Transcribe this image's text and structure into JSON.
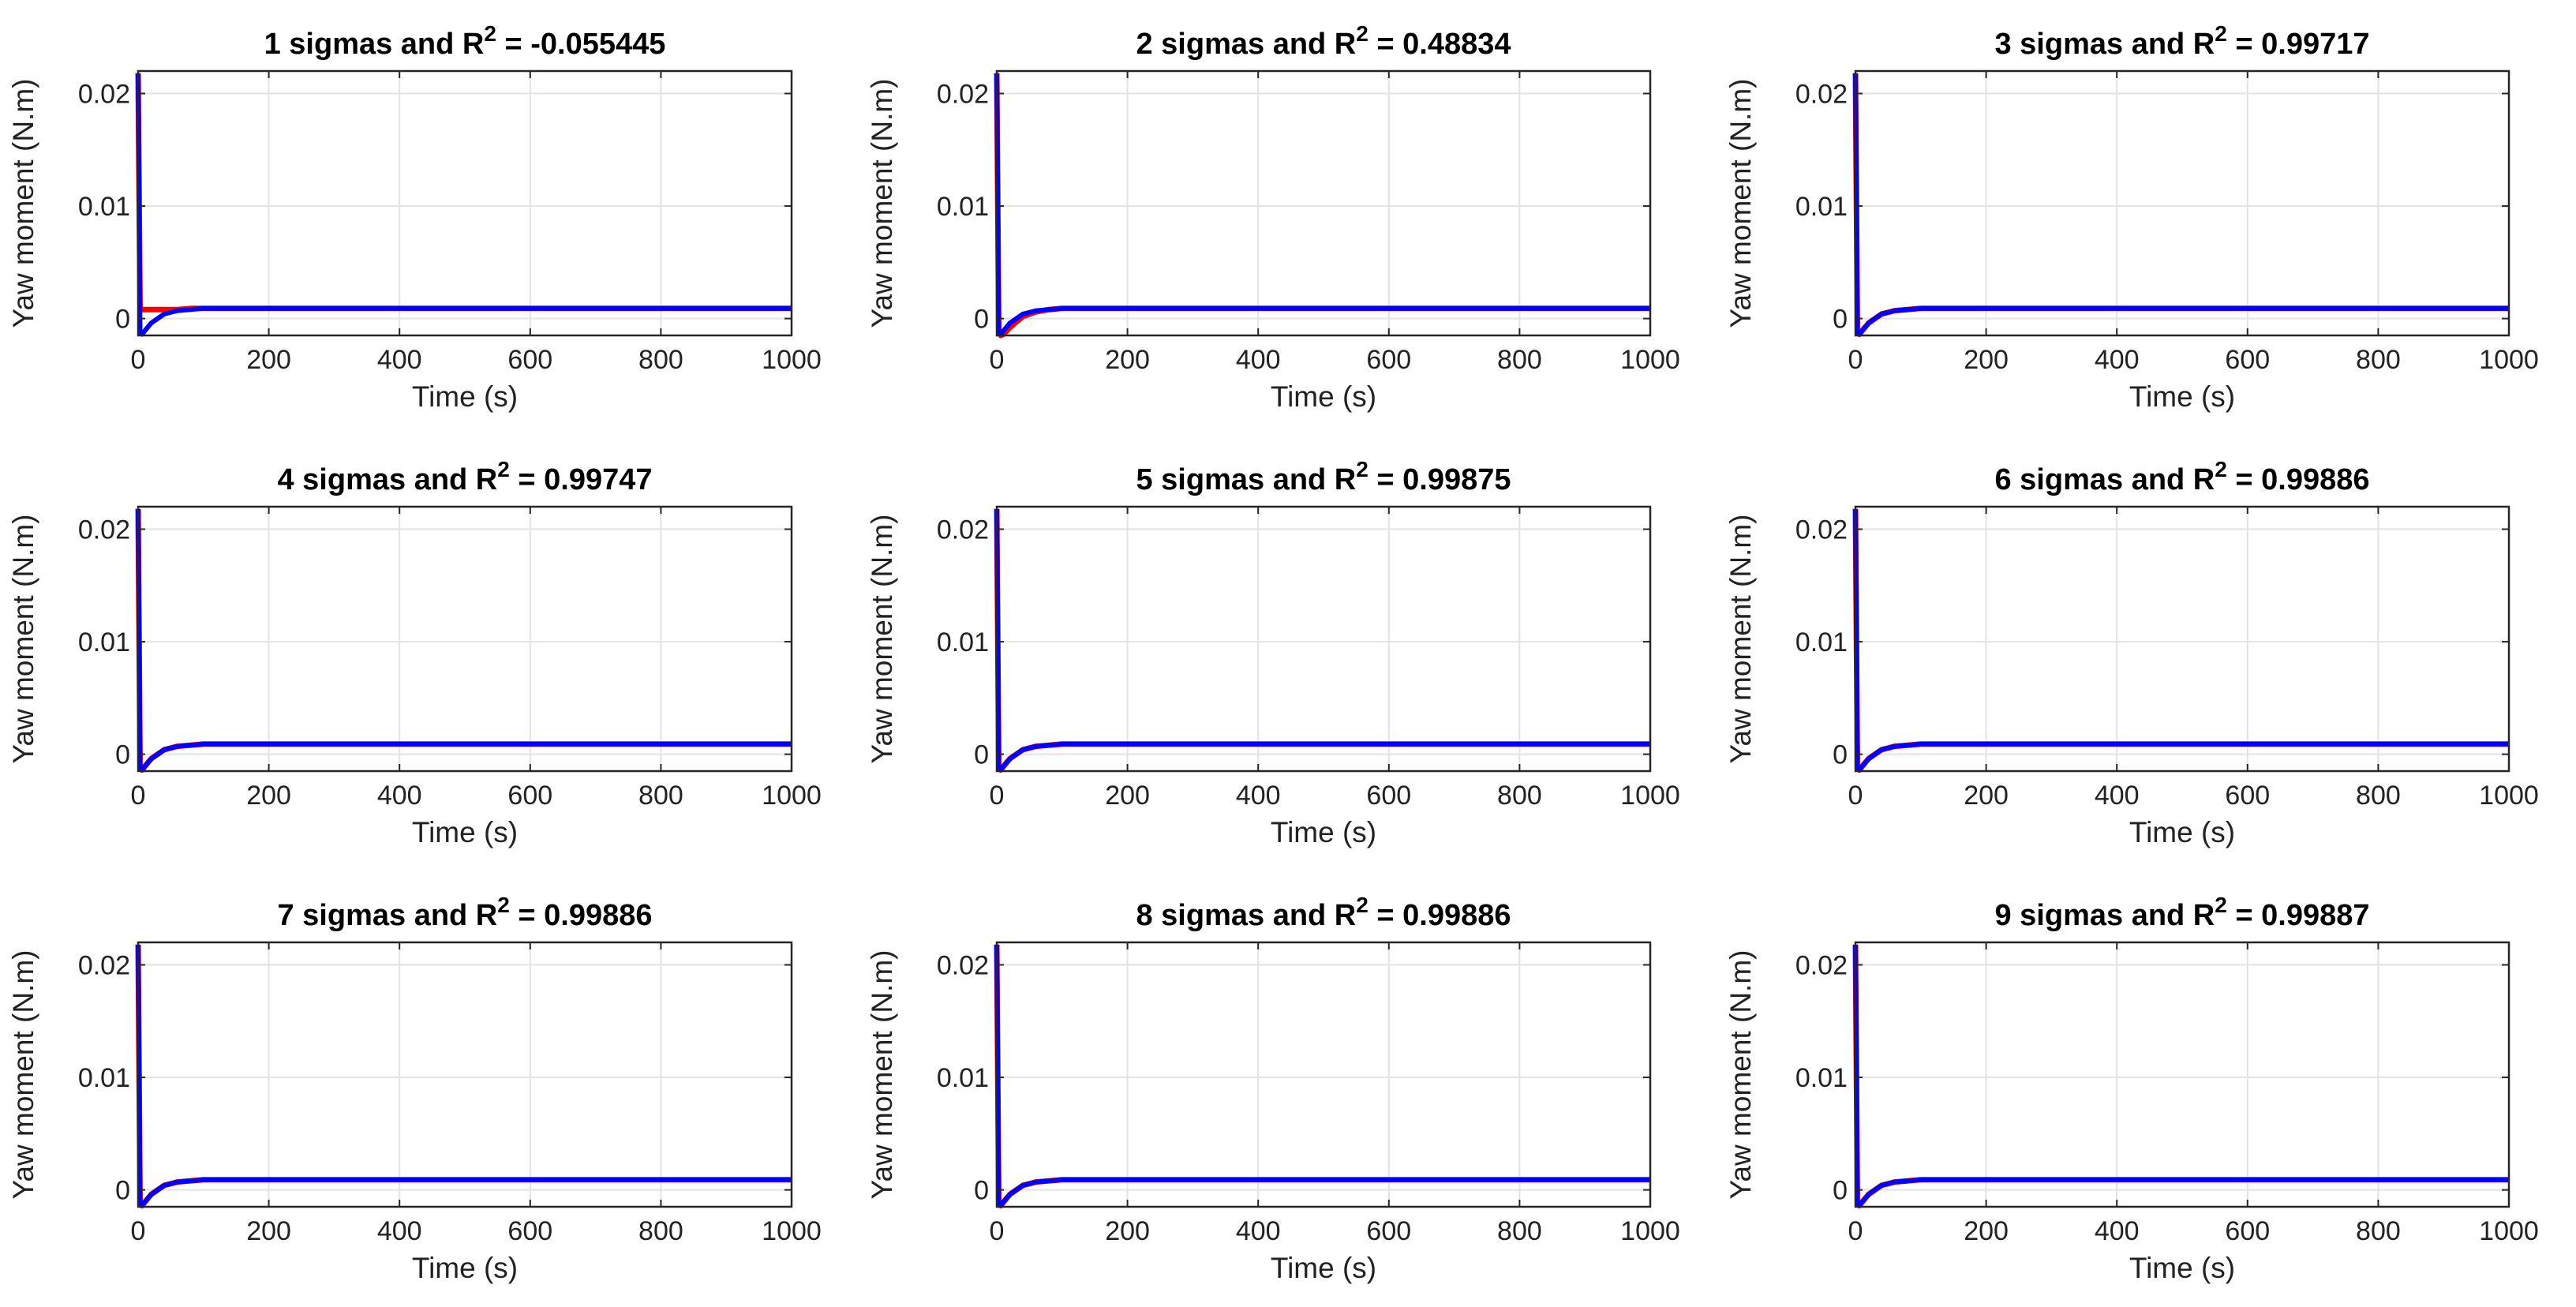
{
  "chart_data": [
    {
      "type": "line",
      "title": "1 sigmas and R",
      "title_sup": "2",
      "title_value": " = -0.055445",
      "xlabel": "Time (s)",
      "ylabel": "Yaw moment (N.m)",
      "xlim": [
        0,
        1000
      ],
      "ylim": [
        -0.0015,
        0.022
      ],
      "xticks": [
        "0",
        "200",
        "400",
        "600",
        "800",
        "1000"
      ],
      "yticks": [
        "0",
        "0.01",
        "0.02"
      ],
      "grid": true,
      "series": [
        {
          "color": "#ff0000",
          "x": [
            0,
            3,
            6,
            10,
            20,
            40,
            60,
            80,
            100,
            200,
            400,
            600,
            800,
            1000
          ],
          "y": [
            0.0218,
            0.0008,
            0.0008,
            0.0008,
            0.0008,
            0.0008,
            0.0008,
            0.0009,
            0.0009,
            0.0009,
            0.0009,
            0.0009,
            0.0009,
            0.0009
          ]
        },
        {
          "color": "#0000ff",
          "x": [
            0,
            3,
            6,
            10,
            20,
            30,
            40,
            60,
            80,
            100,
            200,
            400,
            600,
            800,
            1000
          ],
          "y": [
            0.0218,
            -0.0012,
            -0.0014,
            -0.0011,
            -0.0004,
            0.0,
            0.0004,
            0.0007,
            0.0008,
            0.0009,
            0.0009,
            0.0009,
            0.0009,
            0.0009,
            0.0009
          ]
        }
      ]
    },
    {
      "type": "line",
      "title": "2 sigmas and R",
      "title_sup": "2",
      "title_value": " = 0.48834",
      "xlabel": "Time (s)",
      "ylabel": "Yaw moment (N.m)",
      "xlim": [
        0,
        1000
      ],
      "ylim": [
        -0.0015,
        0.022
      ],
      "xticks": [
        "0",
        "200",
        "400",
        "600",
        "800",
        "1000"
      ],
      "yticks": [
        "0",
        "0.01",
        "0.02"
      ],
      "grid": true,
      "series": [
        {
          "color": "#ff0000",
          "x": [
            0,
            3,
            6,
            10,
            20,
            30,
            40,
            60,
            80,
            100,
            200,
            400,
            600,
            800,
            1000
          ],
          "y": [
            0.0218,
            -0.0012,
            -0.0015,
            -0.0014,
            -0.0008,
            -0.0003,
            0.0002,
            0.0006,
            0.0008,
            0.0009,
            0.0009,
            0.0009,
            0.0009,
            0.0009,
            0.0009
          ]
        },
        {
          "color": "#0000ff",
          "x": [
            0,
            3,
            6,
            10,
            20,
            30,
            40,
            60,
            80,
            100,
            200,
            400,
            600,
            800,
            1000
          ],
          "y": [
            0.0218,
            -0.0012,
            -0.0014,
            -0.0011,
            -0.0004,
            0.0,
            0.0004,
            0.0007,
            0.0008,
            0.0009,
            0.0009,
            0.0009,
            0.0009,
            0.0009,
            0.0009
          ]
        }
      ]
    },
    {
      "type": "line",
      "title": "3 sigmas and R",
      "title_sup": "2",
      "title_value": " = 0.99717",
      "xlabel": "Time (s)",
      "ylabel": "Yaw moment (N.m)",
      "xlim": [
        0,
        1000
      ],
      "ylim": [
        -0.0015,
        0.022
      ],
      "xticks": [
        "0",
        "200",
        "400",
        "600",
        "800",
        "1000"
      ],
      "yticks": [
        "0",
        "0.01",
        "0.02"
      ],
      "grid": true,
      "series": [
        {
          "color": "#ff0000",
          "x": [
            0,
            3,
            6,
            10,
            20,
            30,
            40,
            60,
            80,
            100,
            200,
            400,
            600,
            800,
            1000
          ],
          "y": [
            0.0218,
            -0.0012,
            -0.0014,
            -0.0011,
            -0.0004,
            0.0,
            0.0004,
            0.0007,
            0.0008,
            0.0009,
            0.0009,
            0.0009,
            0.0009,
            0.0009,
            0.0009
          ]
        },
        {
          "color": "#0000ff",
          "x": [
            0,
            3,
            6,
            10,
            20,
            30,
            40,
            60,
            80,
            100,
            200,
            400,
            600,
            800,
            1000
          ],
          "y": [
            0.0218,
            -0.0012,
            -0.0014,
            -0.0011,
            -0.0004,
            0.0,
            0.0004,
            0.0007,
            0.0008,
            0.0009,
            0.0009,
            0.0009,
            0.0009,
            0.0009,
            0.0009
          ]
        }
      ]
    },
    {
      "type": "line",
      "title": "4 sigmas and R",
      "title_sup": "2",
      "title_value": " = 0.99747",
      "xlabel": "Time (s)",
      "ylabel": "Yaw moment (N.m)",
      "xlim": [
        0,
        1000
      ],
      "ylim": [
        -0.0015,
        0.022
      ],
      "xticks": [
        "0",
        "200",
        "400",
        "600",
        "800",
        "1000"
      ],
      "yticks": [
        "0",
        "0.01",
        "0.02"
      ],
      "grid": true,
      "series": [
        {
          "color": "#ff0000",
          "x": [
            0,
            3,
            6,
            10,
            20,
            30,
            40,
            60,
            80,
            100,
            200,
            400,
            600,
            800,
            1000
          ],
          "y": [
            0.0218,
            -0.0012,
            -0.0014,
            -0.0011,
            -0.0004,
            0.0,
            0.0004,
            0.0007,
            0.0008,
            0.0009,
            0.0009,
            0.0009,
            0.0009,
            0.0009,
            0.0009
          ]
        },
        {
          "color": "#0000ff",
          "x": [
            0,
            3,
            6,
            10,
            20,
            30,
            40,
            60,
            80,
            100,
            200,
            400,
            600,
            800,
            1000
          ],
          "y": [
            0.0218,
            -0.0012,
            -0.0014,
            -0.0011,
            -0.0004,
            0.0,
            0.0004,
            0.0007,
            0.0008,
            0.0009,
            0.0009,
            0.0009,
            0.0009,
            0.0009,
            0.0009
          ]
        }
      ]
    },
    {
      "type": "line",
      "title": "5 sigmas and R",
      "title_sup": "2",
      "title_value": " = 0.99875",
      "xlabel": "Time (s)",
      "ylabel": "Yaw moment (N.m)",
      "xlim": [
        0,
        1000
      ],
      "ylim": [
        -0.0015,
        0.022
      ],
      "xticks": [
        "0",
        "200",
        "400",
        "600",
        "800",
        "1000"
      ],
      "yticks": [
        "0",
        "0.01",
        "0.02"
      ],
      "grid": true,
      "series": [
        {
          "color": "#ff0000",
          "x": [
            0,
            3,
            6,
            10,
            20,
            30,
            40,
            60,
            80,
            100,
            200,
            400,
            600,
            800,
            1000
          ],
          "y": [
            0.0218,
            -0.0012,
            -0.0014,
            -0.0011,
            -0.0004,
            0.0,
            0.0004,
            0.0007,
            0.0008,
            0.0009,
            0.0009,
            0.0009,
            0.0009,
            0.0009,
            0.0009
          ]
        },
        {
          "color": "#0000ff",
          "x": [
            0,
            3,
            6,
            10,
            20,
            30,
            40,
            60,
            80,
            100,
            200,
            400,
            600,
            800,
            1000
          ],
          "y": [
            0.0218,
            -0.0012,
            -0.0014,
            -0.0011,
            -0.0004,
            0.0,
            0.0004,
            0.0007,
            0.0008,
            0.0009,
            0.0009,
            0.0009,
            0.0009,
            0.0009,
            0.0009
          ]
        }
      ]
    },
    {
      "type": "line",
      "title": "6 sigmas and R",
      "title_sup": "2",
      "title_value": " = 0.99886",
      "xlabel": "Time (s)",
      "ylabel": "Yaw moment (N.m)",
      "xlim": [
        0,
        1000
      ],
      "ylim": [
        -0.0015,
        0.022
      ],
      "xticks": [
        "0",
        "200",
        "400",
        "600",
        "800",
        "1000"
      ],
      "yticks": [
        "0",
        "0.01",
        "0.02"
      ],
      "grid": true,
      "series": [
        {
          "color": "#ff0000",
          "x": [
            0,
            3,
            6,
            10,
            20,
            30,
            40,
            60,
            80,
            100,
            200,
            400,
            600,
            800,
            1000
          ],
          "y": [
            0.0218,
            -0.0012,
            -0.0014,
            -0.0011,
            -0.0004,
            0.0,
            0.0004,
            0.0007,
            0.0008,
            0.0009,
            0.0009,
            0.0009,
            0.0009,
            0.0009,
            0.0009
          ]
        },
        {
          "color": "#0000ff",
          "x": [
            0,
            3,
            6,
            10,
            20,
            30,
            40,
            60,
            80,
            100,
            200,
            400,
            600,
            800,
            1000
          ],
          "y": [
            0.0218,
            -0.0012,
            -0.0014,
            -0.0011,
            -0.0004,
            0.0,
            0.0004,
            0.0007,
            0.0008,
            0.0009,
            0.0009,
            0.0009,
            0.0009,
            0.0009,
            0.0009
          ]
        }
      ]
    },
    {
      "type": "line",
      "title": "7 sigmas and R",
      "title_sup": "2",
      "title_value": " = 0.99886",
      "xlabel": "Time (s)",
      "ylabel": "Yaw moment (N.m)",
      "xlim": [
        0,
        1000
      ],
      "ylim": [
        -0.0015,
        0.022
      ],
      "xticks": [
        "0",
        "200",
        "400",
        "600",
        "800",
        "1000"
      ],
      "yticks": [
        "0",
        "0.01",
        "0.02"
      ],
      "grid": true,
      "series": [
        {
          "color": "#ff0000",
          "x": [
            0,
            3,
            6,
            10,
            20,
            30,
            40,
            60,
            80,
            100,
            200,
            400,
            600,
            800,
            1000
          ],
          "y": [
            0.0218,
            -0.0012,
            -0.0014,
            -0.0011,
            -0.0004,
            0.0,
            0.0004,
            0.0007,
            0.0008,
            0.0009,
            0.0009,
            0.0009,
            0.0009,
            0.0009,
            0.0009
          ]
        },
        {
          "color": "#0000ff",
          "x": [
            0,
            3,
            6,
            10,
            20,
            30,
            40,
            60,
            80,
            100,
            200,
            400,
            600,
            800,
            1000
          ],
          "y": [
            0.0218,
            -0.0012,
            -0.0014,
            -0.0011,
            -0.0004,
            0.0,
            0.0004,
            0.0007,
            0.0008,
            0.0009,
            0.0009,
            0.0009,
            0.0009,
            0.0009,
            0.0009
          ]
        }
      ]
    },
    {
      "type": "line",
      "title": "8 sigmas and R",
      "title_sup": "2",
      "title_value": " = 0.99886",
      "xlabel": "Time (s)",
      "ylabel": "Yaw moment (N.m)",
      "xlim": [
        0,
        1000
      ],
      "ylim": [
        -0.0015,
        0.022
      ],
      "xticks": [
        "0",
        "200",
        "400",
        "600",
        "800",
        "1000"
      ],
      "yticks": [
        "0",
        "0.01",
        "0.02"
      ],
      "grid": true,
      "series": [
        {
          "color": "#ff0000",
          "x": [
            0,
            3,
            6,
            10,
            20,
            30,
            40,
            60,
            80,
            100,
            200,
            400,
            600,
            800,
            1000
          ],
          "y": [
            0.0218,
            -0.0012,
            -0.0014,
            -0.0011,
            -0.0004,
            0.0,
            0.0004,
            0.0007,
            0.0008,
            0.0009,
            0.0009,
            0.0009,
            0.0009,
            0.0009,
            0.0009
          ]
        },
        {
          "color": "#0000ff",
          "x": [
            0,
            3,
            6,
            10,
            20,
            30,
            40,
            60,
            80,
            100,
            200,
            400,
            600,
            800,
            1000
          ],
          "y": [
            0.0218,
            -0.0012,
            -0.0014,
            -0.0011,
            -0.0004,
            0.0,
            0.0004,
            0.0007,
            0.0008,
            0.0009,
            0.0009,
            0.0009,
            0.0009,
            0.0009,
            0.0009
          ]
        }
      ]
    },
    {
      "type": "line",
      "title": "9 sigmas and R",
      "title_sup": "2",
      "title_value": " = 0.99887",
      "xlabel": "Time (s)",
      "ylabel": "Yaw moment (N.m)",
      "xlim": [
        0,
        1000
      ],
      "ylim": [
        -0.0015,
        0.022
      ],
      "xticks": [
        "0",
        "200",
        "400",
        "600",
        "800",
        "1000"
      ],
      "yticks": [
        "0",
        "0.01",
        "0.02"
      ],
      "grid": true,
      "series": [
        {
          "color": "#ff0000",
          "x": [
            0,
            3,
            6,
            10,
            20,
            30,
            40,
            60,
            80,
            100,
            200,
            400,
            600,
            800,
            1000
          ],
          "y": [
            0.0218,
            -0.0012,
            -0.0014,
            -0.0011,
            -0.0004,
            0.0,
            0.0004,
            0.0007,
            0.0008,
            0.0009,
            0.0009,
            0.0009,
            0.0009,
            0.0009,
            0.0009
          ]
        },
        {
          "color": "#0000ff",
          "x": [
            0,
            3,
            6,
            10,
            20,
            30,
            40,
            60,
            80,
            100,
            200,
            400,
            600,
            800,
            1000
          ],
          "y": [
            0.0218,
            -0.0012,
            -0.0014,
            -0.0011,
            -0.0004,
            0.0,
            0.0004,
            0.0007,
            0.0008,
            0.0009,
            0.0009,
            0.0009,
            0.0009,
            0.0009,
            0.0009
          ]
        }
      ]
    }
  ]
}
